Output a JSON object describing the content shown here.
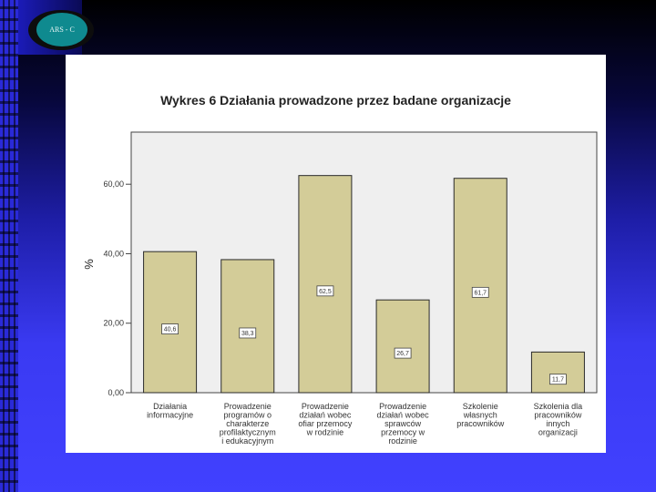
{
  "logo": {
    "text": "ARS - C"
  },
  "chart_data": {
    "type": "bar",
    "title": "Wykres 6 Działania prowadzone przez badane organizacje",
    "ylabel": "%",
    "xlabel": "",
    "ylim": [
      0,
      75
    ],
    "yticks": [
      0,
      20,
      40,
      60
    ],
    "ytick_labels": [
      "0,00",
      "20,00",
      "40,00",
      "60,00"
    ],
    "categories": [
      [
        "Działania",
        "informacyjne"
      ],
      [
        "Prowadzenie",
        "programów o",
        "charakterze",
        "profilaktycznym",
        "i edukacyjnym"
      ],
      [
        "Prowadzenie",
        "działań wobec",
        "ofiar przemocy",
        "w rodzinie"
      ],
      [
        "Prowadzenie",
        "działań wobec",
        "sprawców",
        "przemocy w",
        "rodzinie"
      ],
      [
        "Szkolenie",
        "własnych",
        "pracowników"
      ],
      [
        "Szkolenia dla",
        "pracowników",
        "innych",
        "organizacji"
      ]
    ],
    "values": [
      40.6,
      38.3,
      62.5,
      26.7,
      61.7,
      11.7
    ],
    "value_labels": [
      "40,6",
      "38,3",
      "62,5",
      "26,7",
      "61,7",
      "11,7"
    ],
    "colors": {
      "bar": "#d3cc98",
      "plot_bg": "#efefef",
      "bar_edge": "#2a2a2a"
    }
  }
}
